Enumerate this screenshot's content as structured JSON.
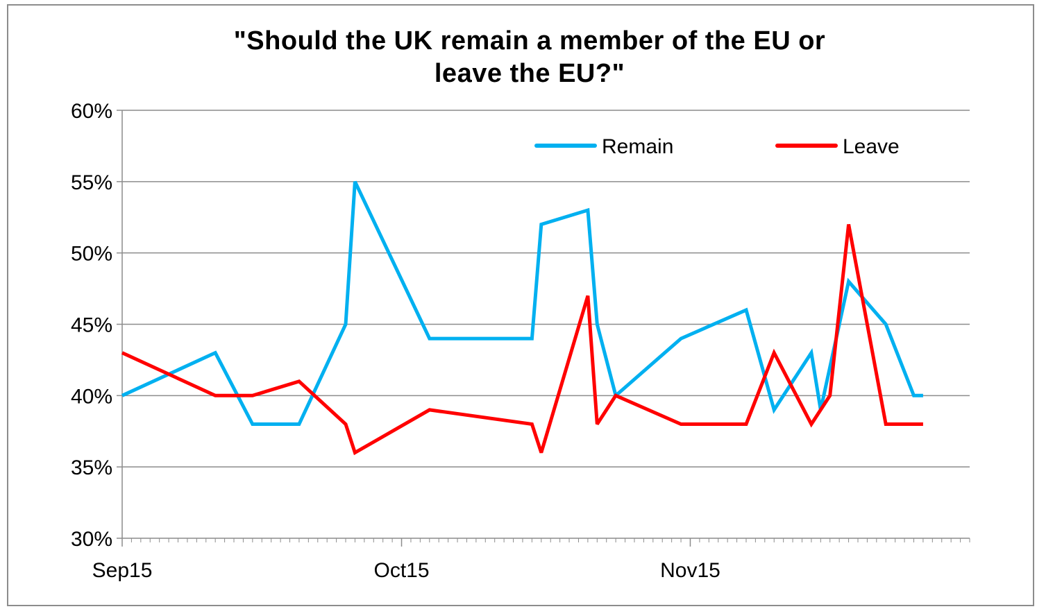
{
  "chart_data": {
    "type": "line",
    "title": "\"Should the UK remain a member of the EU or leave the EU?\"",
    "title_lines": [
      "\"Should the UK remain a member of the EU or",
      "leave the EU?\""
    ],
    "xlabel": "",
    "ylabel": "",
    "ylim": [
      30,
      60
    ],
    "yticks": [
      30,
      35,
      40,
      45,
      50,
      55,
      60
    ],
    "ytick_labels": [
      "30%",
      "35%",
      "40%",
      "45%",
      "50%",
      "55%",
      "60%"
    ],
    "xlim": [
      "2015-09-01",
      "2015-12-01"
    ],
    "xticks": [
      "2015-09-01",
      "2015-10-01",
      "2015-11-01"
    ],
    "xtick_labels": [
      "Sep15",
      "Oct15",
      "Nov15"
    ],
    "grid": "horizontal",
    "legend": "top-right",
    "series": [
      {
        "name": "Remain",
        "color": "#00b0f0",
        "x": [
          "2015-09-01",
          "2015-09-11",
          "2015-09-15",
          "2015-09-20",
          "2015-09-25",
          "2015-09-26",
          "2015-10-04",
          "2015-10-15",
          "2015-10-16",
          "2015-10-21",
          "2015-10-22",
          "2015-10-24",
          "2015-10-31",
          "2015-11-07",
          "2015-11-10",
          "2015-11-14",
          "2015-11-15",
          "2015-11-18",
          "2015-11-22",
          "2015-11-25",
          "2015-11-26"
        ],
        "values": [
          40,
          43,
          38,
          38,
          45,
          55,
          44,
          44,
          52,
          53,
          45,
          40,
          44,
          46,
          39,
          43,
          39,
          48,
          45,
          40,
          40
        ]
      },
      {
        "name": "Leave",
        "color": "#ff0000",
        "x": [
          "2015-09-01",
          "2015-09-11",
          "2015-09-15",
          "2015-09-20",
          "2015-09-25",
          "2015-09-26",
          "2015-10-04",
          "2015-10-15",
          "2015-10-16",
          "2015-10-21",
          "2015-10-22",
          "2015-10-24",
          "2015-10-31",
          "2015-11-07",
          "2015-11-10",
          "2015-11-14",
          "2015-11-16",
          "2015-11-18",
          "2015-11-22",
          "2015-11-25",
          "2015-11-26"
        ],
        "values": [
          43,
          40,
          40,
          41,
          38,
          36,
          39,
          38,
          36,
          47,
          38,
          40,
          38,
          38,
          43,
          38,
          40,
          52,
          38,
          38,
          38
        ]
      }
    ]
  }
}
